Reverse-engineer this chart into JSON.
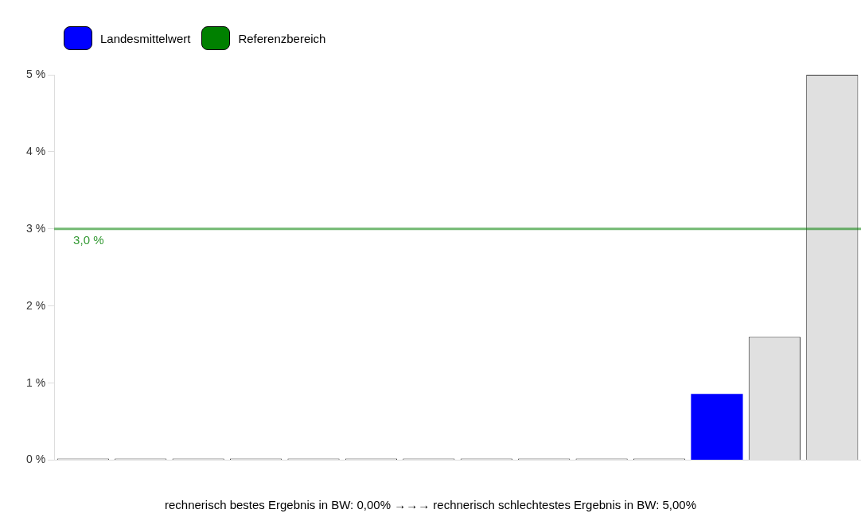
{
  "chart_data": {
    "type": "bar",
    "stacked": true,
    "legend": "top left",
    "grid": false,
    "categories": [
      null,
      null,
      null,
      null,
      null,
      null,
      null,
      null,
      null,
      null,
      null,
      null,
      null,
      null
    ],
    "series": [
      {
        "color": "#e0e0e0",
        "values": [
          0,
          0,
          0,
          0,
          0,
          0,
          0,
          0,
          0,
          0,
          0,
          null,
          1.6,
          5.0
        ]
      },
      {
        "name": "Landesmittelwert",
        "color": "#0000ff",
        "values": [
          null,
          null,
          null,
          null,
          null,
          null,
          null,
          null,
          null,
          null,
          null,
          0.86,
          null,
          null
        ]
      }
    ],
    "ylim": [
      0,
      5
    ],
    "yticks": [
      {
        "value": 0,
        "label": "0 %"
      },
      {
        "value": 1,
        "label": "1 %"
      },
      {
        "value": 2,
        "label": "2 %"
      },
      {
        "value": 3,
        "label": "3 %"
      },
      {
        "value": 4,
        "label": "4 %"
      },
      {
        "value": 5,
        "label": "5 %"
      }
    ],
    "ref_lines": [
      {
        "axis": "y",
        "value": 3,
        "label": "Referenzbereich",
        "color": "#008000"
      }
    ],
    "annotations": [
      {
        "text": "3,0 %",
        "y": 3
      },
      "rechnerisch bestes Ergebnis in BW: 0,00% →→→ rechnerisch schlechtestes Ergebnis in BW: 5,00%"
    ]
  }
}
